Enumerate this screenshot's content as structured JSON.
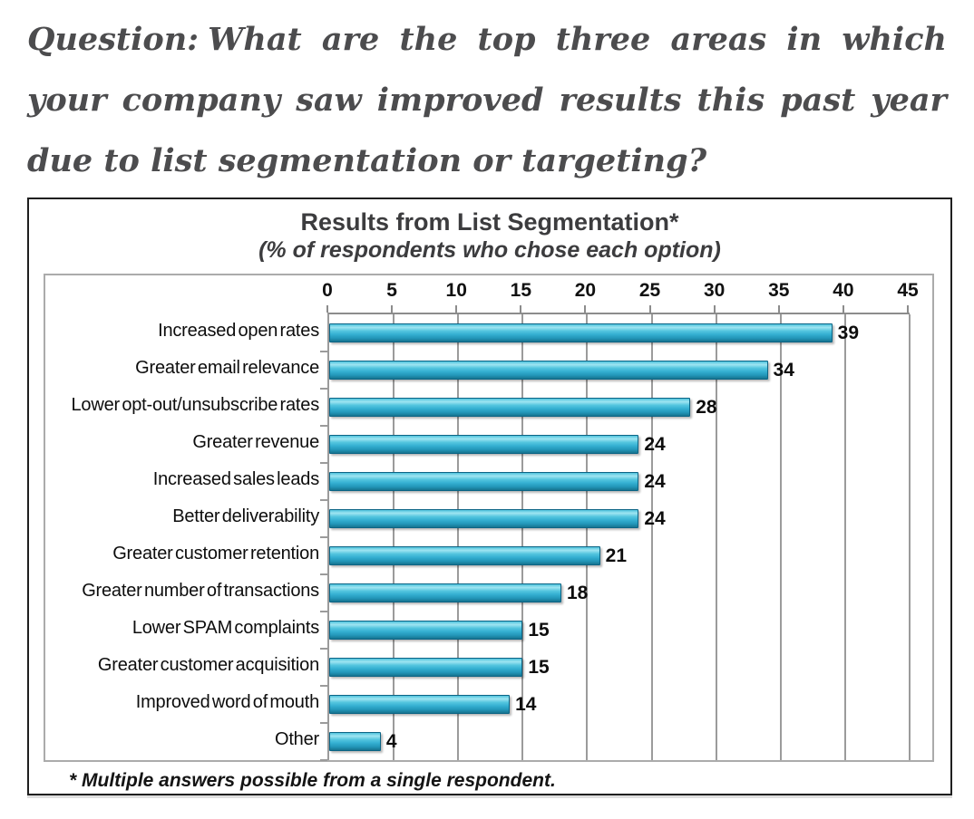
{
  "question": {
    "label": "Question:",
    "text": "What are the top three areas in which your company saw improved results this past year due to list segmentation or targeting?"
  },
  "chart_data": {
    "type": "bar",
    "orientation": "horizontal",
    "title": "Results from List Segmentation*",
    "subtitle": "(% of respondents who chose each option)",
    "footnote": "* Multiple answers possible from a single respondent.",
    "categories": [
      "Increased open rates",
      "Greater email relevance",
      "Lower opt-out/unsubscribe rates",
      "Greater revenue",
      "Increased sales leads",
      "Better deliverability",
      "Greater customer retention",
      "Greater number of transactions",
      "Lower SPAM complaints",
      "Greater customer acquisition",
      "Improved word of mouth",
      "Other"
    ],
    "values": [
      39,
      34,
      28,
      24,
      24,
      24,
      21,
      18,
      15,
      15,
      14,
      4
    ],
    "xlim": [
      0,
      45
    ],
    "x_ticks": [
      0,
      5,
      10,
      15,
      20,
      25,
      30,
      35,
      40,
      45
    ],
    "grid": true,
    "legend": "none",
    "value_labels": "outside-end"
  },
  "colors": {
    "bar_main": "#3ab7d8",
    "bar_highlight": "#9fe5f2",
    "bar_dark": "#16748f",
    "bar_border": "#0c6485",
    "gridline": "#9b9b9b",
    "axis_line": "#8c8c8c",
    "title_text": "#3c3c3e",
    "question_text": "#4c4c4e",
    "outer_frame": "#1f1f1f",
    "inner_frame": "#ababab",
    "label_text": "#0d0d0d"
  }
}
